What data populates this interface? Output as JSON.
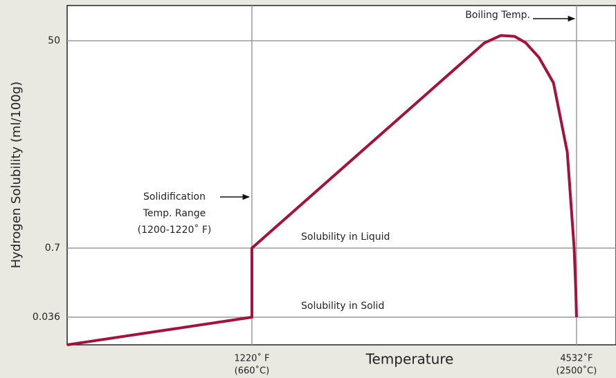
{
  "chart_data": {
    "type": "line",
    "xlabel": "Temperature",
    "ylabel": "Hydrogen Solubility (ml/100g)",
    "xlim": [
      -665,
      4935
    ],
    "xticks": [
      {
        "value": 1220,
        "label": [
          "1220˚ F",
          "(660˚C)"
        ]
      },
      {
        "value": 4532,
        "label": [
          "4532˚F",
          "(2500˚C)"
        ]
      }
    ],
    "ylim": [
      0,
      58
    ],
    "yticks": [
      0.036,
      0.7,
      50
    ],
    "grid": true,
    "series": [
      {
        "color": "#a3123a",
        "x": [
          -665,
          1220,
          1220,
          3593,
          3760,
          3900,
          4015,
          4150,
          4297,
          4438,
          4508,
          4525,
          4532
        ],
        "values": [
          0,
          0.036,
          0.7,
          49.5,
          51.2,
          51,
          49.5,
          46,
          40,
          23.5,
          0.7,
          0.29,
          0.036
        ]
      }
    ],
    "annotations": [
      "Boiling Temp.",
      [
        "Solidification",
        "Temp. Range",
        "(1200-1220˚ F)"
      ],
      "Solubility in Liquid",
      "Solubility in Solid"
    ]
  }
}
